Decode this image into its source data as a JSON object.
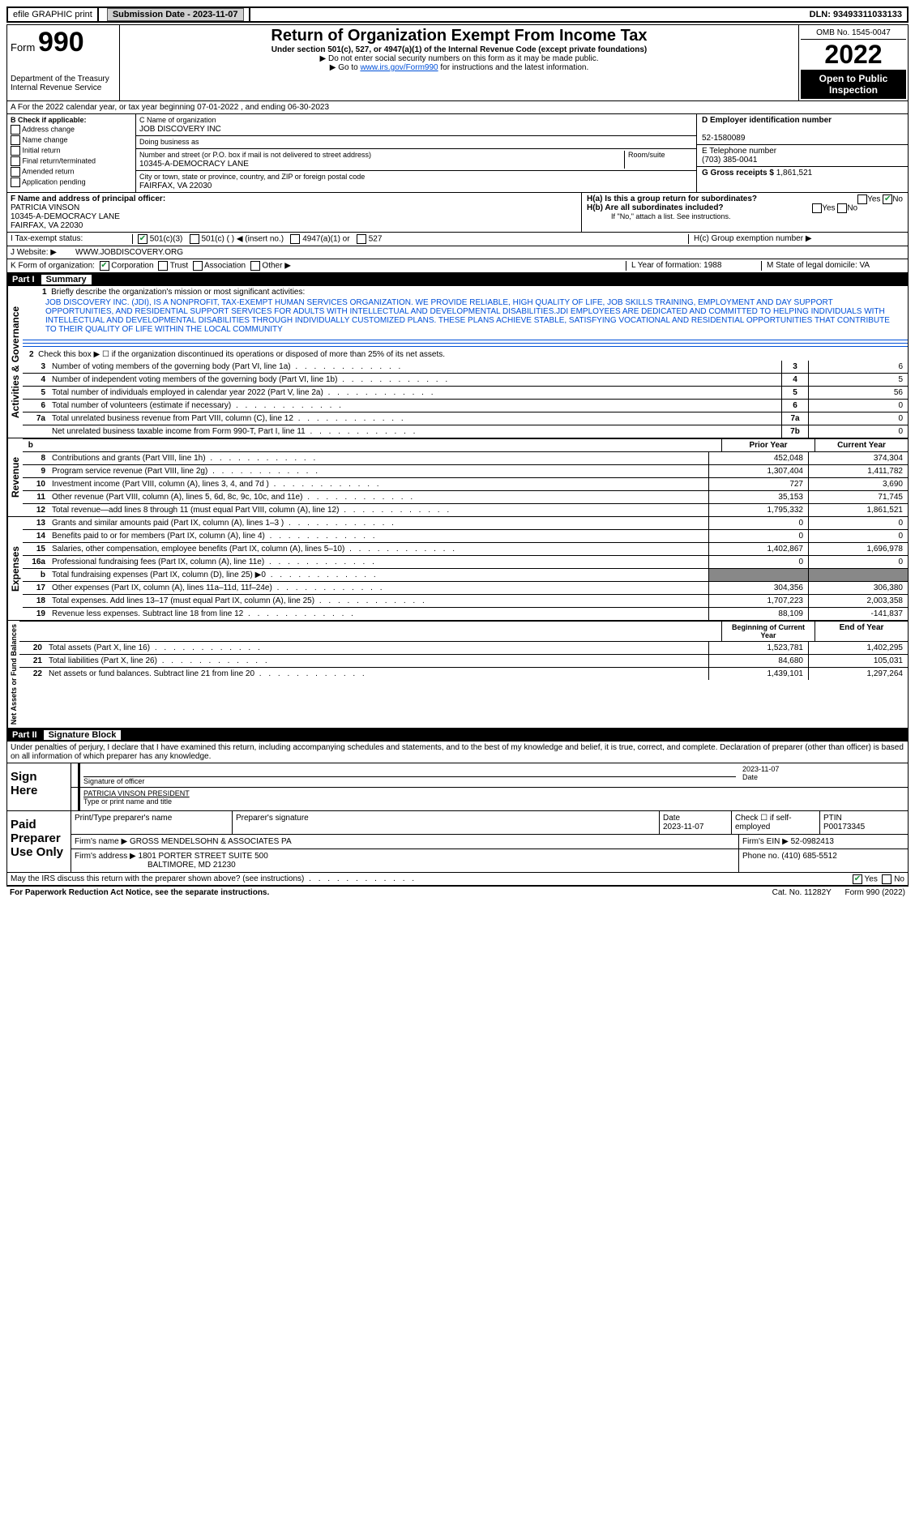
{
  "topbar": {
    "efile": "efile GRAPHIC print",
    "subdate_lbl": "Submission Date - 2023-11-07",
    "dln": "DLN: 93493311033133"
  },
  "header": {
    "form_prefix": "Form",
    "form_no": "990",
    "dept": "Department of the Treasury Internal Revenue Service",
    "title": "Return of Organization Exempt From Income Tax",
    "subtitle": "Under section 501(c), 527, or 4947(a)(1) of the Internal Revenue Code (except private foundations)",
    "line1": "▶ Do not enter social security numbers on this form as it may be made public.",
    "line2_pre": "▶ Go to ",
    "line2_link": "www.irs.gov/Form990",
    "line2_post": " for instructions and the latest information.",
    "omb": "OMB No. 1545-0047",
    "year": "2022",
    "inspection": "Open to Public Inspection"
  },
  "period": "A For the 2022 calendar year, or tax year beginning 07-01-2022   , and ending 06-30-2023",
  "boxB": {
    "title": "B Check if applicable:",
    "items": [
      "Address change",
      "Name change",
      "Initial return",
      "Final return/terminated",
      "Amended return",
      "Application pending"
    ]
  },
  "boxC": {
    "name_lbl": "C Name of organization",
    "name": "JOB DISCOVERY INC",
    "dba_lbl": "Doing business as",
    "addr_lbl": "Number and street (or P.O. box if mail is not delivered to street address)",
    "addr": "10345-A-DEMOCRACY LANE",
    "room_lbl": "Room/suite",
    "city_lbl": "City or town, state or province, country, and ZIP or foreign postal code",
    "city": "FAIRFAX, VA  22030"
  },
  "boxD": {
    "ein_lbl": "D Employer identification number",
    "ein": "52-1580089",
    "phone_lbl": "E Telephone number",
    "phone": "(703) 385-0041",
    "gross_lbl": "G Gross receipts $",
    "gross": "1,861,521"
  },
  "boxF": {
    "lbl": "F  Name and address of principal officer:",
    "name": "PATRICIA VINSON",
    "addr1": "10345-A-DEMOCRACY LANE",
    "addr2": "FAIRFAX, VA  22030"
  },
  "boxH": {
    "ha": "H(a)  Is this a group return for subordinates?",
    "hb": "H(b)  Are all subordinates included?",
    "hb_note": "If \"No,\" attach a list. See instructions.",
    "hc": "H(c)  Group exemption number ▶"
  },
  "taxExempt": {
    "lbl": "I    Tax-exempt status:",
    "l501c3": "501(c)(3)",
    "l501c": "501(c) (  ) ◀ (insert no.)",
    "l4947": "4947(a)(1) or",
    "l527": "527"
  },
  "website": {
    "lbl": "J   Website: ▶",
    "val": "WWW.JOBDISCOVERY.ORG"
  },
  "klm": {
    "k": "K Form of organization:",
    "corp": "Corporation",
    "trust": "Trust",
    "assoc": "Association",
    "other": "Other ▶",
    "l": "L Year of formation: 1988",
    "m": "M State of legal domicile: VA"
  },
  "part1": {
    "hdr": "Part I",
    "title": "Summary",
    "q1": "Briefly describe the organization's mission or most significant activities:",
    "mission": "JOB DISCOVERY INC. (JDI), IS A NONPROFIT, TAX-EXEMPT HUMAN SERVICES ORGANIZATION. WE PROVIDE RELIABLE, HIGH QUALITY OF LIFE, JOB SKILLS TRAINING, EMPLOYMENT AND DAY SUPPORT OPPORTUNITIES, AND RESIDENTIAL SUPPORT SERVICES FOR ADULTS WITH INTELLECTUAL AND DEVELOPMENTAL DISABILITIES.JDI EMPLOYEES ARE DEDICATED AND COMMITTED TO HELPING INDIVIDUALS WITH INTELLECTUAL AND DEVELOPMENTAL DISABILITIES THROUGH INDIVIDUALLY CUSTOMIZED PLANS. THESE PLANS ACHIEVE STABLE, SATISFYING VOCATIONAL AND RESIDENTIAL OPPORTUNITIES THAT CONTRIBUTE TO THEIR QUALITY OF LIFE WITHIN THE LOCAL COMMUNITY",
    "q2": "Check this box ▶ ☐ if the organization discontinued its operations or disposed of more than 25% of its net assets.",
    "lines_gov": [
      {
        "n": "3",
        "t": "Number of voting members of the governing body (Part VI, line 1a)",
        "bn": "3",
        "v": "6"
      },
      {
        "n": "4",
        "t": "Number of independent voting members of the governing body (Part VI, line 1b)",
        "bn": "4",
        "v": "5"
      },
      {
        "n": "5",
        "t": "Total number of individuals employed in calendar year 2022 (Part V, line 2a)",
        "bn": "5",
        "v": "56"
      },
      {
        "n": "6",
        "t": "Total number of volunteers (estimate if necessary)",
        "bn": "6",
        "v": "0"
      },
      {
        "n": "7a",
        "t": "Total unrelated business revenue from Part VIII, column (C), line 12",
        "bn": "7a",
        "v": "0"
      },
      {
        "n": "",
        "t": "Net unrelated business taxable income from Form 990-T, Part I, line 11",
        "bn": "7b",
        "v": "0"
      }
    ],
    "col_prior": "Prior Year",
    "col_current": "Current Year",
    "lines_rev": [
      {
        "n": "8",
        "t": "Contributions and grants (Part VIII, line 1h)",
        "p": "452,048",
        "c": "374,304"
      },
      {
        "n": "9",
        "t": "Program service revenue (Part VIII, line 2g)",
        "p": "1,307,404",
        "c": "1,411,782"
      },
      {
        "n": "10",
        "t": "Investment income (Part VIII, column (A), lines 3, 4, and 7d )",
        "p": "727",
        "c": "3,690"
      },
      {
        "n": "11",
        "t": "Other revenue (Part VIII, column (A), lines 5, 6d, 8c, 9c, 10c, and 11e)",
        "p": "35,153",
        "c": "71,745"
      },
      {
        "n": "12",
        "t": "Total revenue—add lines 8 through 11 (must equal Part VIII, column (A), line 12)",
        "p": "1,795,332",
        "c": "1,861,521"
      }
    ],
    "lines_exp": [
      {
        "n": "13",
        "t": "Grants and similar amounts paid (Part IX, column (A), lines 1–3 )",
        "p": "0",
        "c": "0"
      },
      {
        "n": "14",
        "t": "Benefits paid to or for members (Part IX, column (A), line 4)",
        "p": "0",
        "c": "0"
      },
      {
        "n": "15",
        "t": "Salaries, other compensation, employee benefits (Part IX, column (A), lines 5–10)",
        "p": "1,402,867",
        "c": "1,696,978"
      },
      {
        "n": "16a",
        "t": "Professional fundraising fees (Part IX, column (A), line 11e)",
        "p": "0",
        "c": "0"
      },
      {
        "n": "b",
        "t": "Total fundraising expenses (Part IX, column (D), line 25) ▶0",
        "p": "SHADE",
        "c": "SHADE"
      },
      {
        "n": "17",
        "t": "Other expenses (Part IX, column (A), lines 11a–11d, 11f–24e)",
        "p": "304,356",
        "c": "306,380"
      },
      {
        "n": "18",
        "t": "Total expenses. Add lines 13–17 (must equal Part IX, column (A), line 25)",
        "p": "1,707,223",
        "c": "2,003,358"
      },
      {
        "n": "19",
        "t": "Revenue less expenses. Subtract line 18 from line 12",
        "p": "88,109",
        "c": "-141,837"
      }
    ],
    "col_begin": "Beginning of Current Year",
    "col_end": "End of Year",
    "lines_net": [
      {
        "n": "20",
        "t": "Total assets (Part X, line 16)",
        "p": "1,523,781",
        "c": "1,402,295"
      },
      {
        "n": "21",
        "t": "Total liabilities (Part X, line 26)",
        "p": "84,680",
        "c": "105,031"
      },
      {
        "n": "22",
        "t": "Net assets or fund balances. Subtract line 21 from line 20",
        "p": "1,439,101",
        "c": "1,297,264"
      }
    ],
    "vlabels": {
      "gov": "Activities & Governance",
      "rev": "Revenue",
      "exp": "Expenses",
      "net": "Net Assets or Fund Balances"
    }
  },
  "part2": {
    "hdr": "Part II",
    "title": "Signature Block",
    "decl": "Under penalties of perjury, I declare that I have examined this return, including accompanying schedules and statements, and to the best of my knowledge and belief, it is true, correct, and complete. Declaration of preparer (other than officer) is based on all information of which preparer has any knowledge.",
    "sign_here": "Sign Here",
    "sig_officer": "Signature of officer",
    "sig_date": "2023-11-07",
    "date_lbl": "Date",
    "officer_name": "PATRICIA VINSON  PRESIDENT",
    "officer_lbl": "Type or print name and title",
    "paid": "Paid Preparer Use Only",
    "prep_name_lbl": "Print/Type preparer's name",
    "prep_sig_lbl": "Preparer's signature",
    "prep_date": "2023-11-07",
    "check_self": "Check ☐ if self-employed",
    "ptin_lbl": "PTIN",
    "ptin": "P00173345",
    "firm_name_lbl": "Firm's name    ▶",
    "firm_name": "GROSS MENDELSOHN & ASSOCIATES PA",
    "firm_ein_lbl": "Firm's EIN ▶",
    "firm_ein": "52-0982413",
    "firm_addr_lbl": "Firm's address ▶",
    "firm_addr": "1801 PORTER STREET SUITE 500",
    "firm_city": "BALTIMORE, MD  21230",
    "firm_phone_lbl": "Phone no.",
    "firm_phone": "(410) 685-5512"
  },
  "footer": {
    "q": "May the IRS discuss this return with the preparer shown above? (see instructions)",
    "yes": "Yes",
    "no": "No",
    "pra": "For Paperwork Reduction Act Notice, see the separate instructions.",
    "cat": "Cat. No. 11282Y",
    "form": "Form 990 (2022)"
  }
}
